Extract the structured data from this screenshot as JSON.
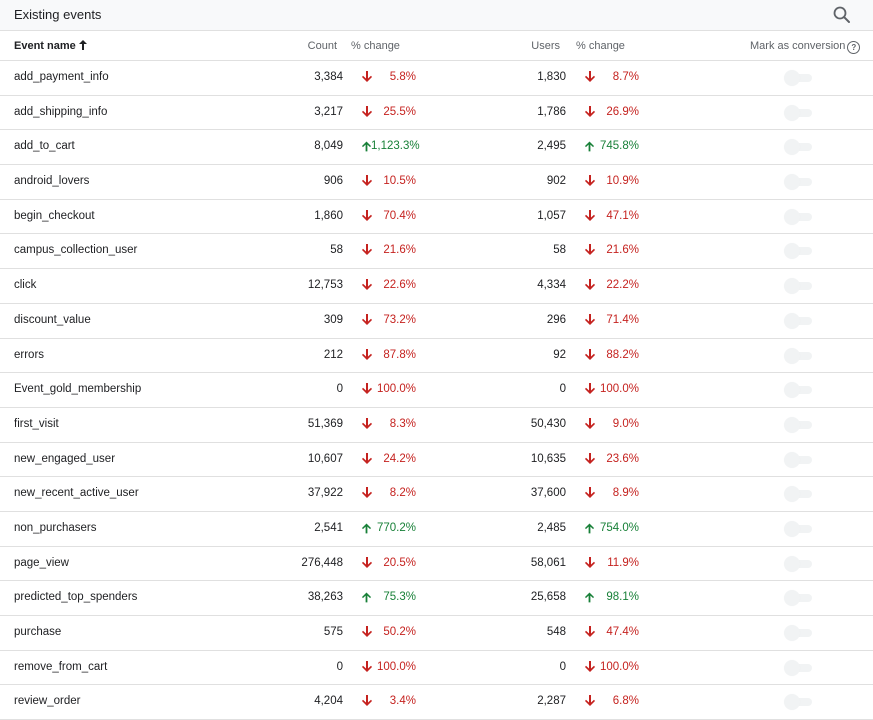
{
  "panel": {
    "title": "Existing events",
    "search_icon": "search-icon"
  },
  "columns": {
    "event_name": "Event name",
    "count": "Count",
    "pct_change": "% change",
    "users": "Users",
    "pct_change_users": "% change",
    "mark_conversion": "Mark as conversion",
    "help_glyph": "?"
  },
  "colors": {
    "down": "#c5221f",
    "up": "#188038",
    "toggle_off": "#f1f3f4"
  },
  "events": [
    {
      "name": "add_payment_info",
      "count": "3,384",
      "count_change": "5.8%",
      "count_dir": "down",
      "users": "1,830",
      "users_change": "8.7%",
      "users_dir": "down",
      "conversion": false
    },
    {
      "name": "add_shipping_info",
      "count": "3,217",
      "count_change": "25.5%",
      "count_dir": "down",
      "users": "1,786",
      "users_change": "26.9%",
      "users_dir": "down",
      "conversion": false
    },
    {
      "name": "add_to_cart",
      "count": "8,049",
      "count_change": "1,123.3%",
      "count_dir": "up",
      "users": "2,495",
      "users_change": "745.8%",
      "users_dir": "up",
      "conversion": false
    },
    {
      "name": "android_lovers",
      "count": "906",
      "count_change": "10.5%",
      "count_dir": "down",
      "users": "902",
      "users_change": "10.9%",
      "users_dir": "down",
      "conversion": false
    },
    {
      "name": "begin_checkout",
      "count": "1,860",
      "count_change": "70.4%",
      "count_dir": "down",
      "users": "1,057",
      "users_change": "47.1%",
      "users_dir": "down",
      "conversion": false
    },
    {
      "name": "campus_collection_user",
      "count": "58",
      "count_change": "21.6%",
      "count_dir": "down",
      "users": "58",
      "users_change": "21.6%",
      "users_dir": "down",
      "conversion": false
    },
    {
      "name": "click",
      "count": "12,753",
      "count_change": "22.6%",
      "count_dir": "down",
      "users": "4,334",
      "users_change": "22.2%",
      "users_dir": "down",
      "conversion": false
    },
    {
      "name": "discount_value",
      "count": "309",
      "count_change": "73.2%",
      "count_dir": "down",
      "users": "296",
      "users_change": "71.4%",
      "users_dir": "down",
      "conversion": false
    },
    {
      "name": "errors",
      "count": "212",
      "count_change": "87.8%",
      "count_dir": "down",
      "users": "92",
      "users_change": "88.2%",
      "users_dir": "down",
      "conversion": false
    },
    {
      "name": "Event_gold_membership",
      "count": "0",
      "count_change": "100.0%",
      "count_dir": "down",
      "users": "0",
      "users_change": "100.0%",
      "users_dir": "down",
      "conversion": false
    },
    {
      "name": "first_visit",
      "count": "51,369",
      "count_change": "8.3%",
      "count_dir": "down",
      "users": "50,430",
      "users_change": "9.0%",
      "users_dir": "down",
      "conversion": false
    },
    {
      "name": "new_engaged_user",
      "count": "10,607",
      "count_change": "24.2%",
      "count_dir": "down",
      "users": "10,635",
      "users_change": "23.6%",
      "users_dir": "down",
      "conversion": false
    },
    {
      "name": "new_recent_active_user",
      "count": "37,922",
      "count_change": "8.2%",
      "count_dir": "down",
      "users": "37,600",
      "users_change": "8.9%",
      "users_dir": "down",
      "conversion": false
    },
    {
      "name": "non_purchasers",
      "count": "2,541",
      "count_change": "770.2%",
      "count_dir": "up",
      "users": "2,485",
      "users_change": "754.0%",
      "users_dir": "up",
      "conversion": false
    },
    {
      "name": "page_view",
      "count": "276,448",
      "count_change": "20.5%",
      "count_dir": "down",
      "users": "58,061",
      "users_change": "11.9%",
      "users_dir": "down",
      "conversion": false
    },
    {
      "name": "predicted_top_spenders",
      "count": "38,263",
      "count_change": "75.3%",
      "count_dir": "up",
      "users": "25,658",
      "users_change": "98.1%",
      "users_dir": "up",
      "conversion": false
    },
    {
      "name": "purchase",
      "count": "575",
      "count_change": "50.2%",
      "count_dir": "down",
      "users": "548",
      "users_change": "47.4%",
      "users_dir": "down",
      "conversion": false
    },
    {
      "name": "remove_from_cart",
      "count": "0",
      "count_change": "100.0%",
      "count_dir": "down",
      "users": "0",
      "users_change": "100.0%",
      "users_dir": "down",
      "conversion": false
    },
    {
      "name": "review_order",
      "count": "4,204",
      "count_change": "3.4%",
      "count_dir": "down",
      "users": "2,287",
      "users_change": "6.8%",
      "users_dir": "down",
      "conversion": false
    }
  ]
}
